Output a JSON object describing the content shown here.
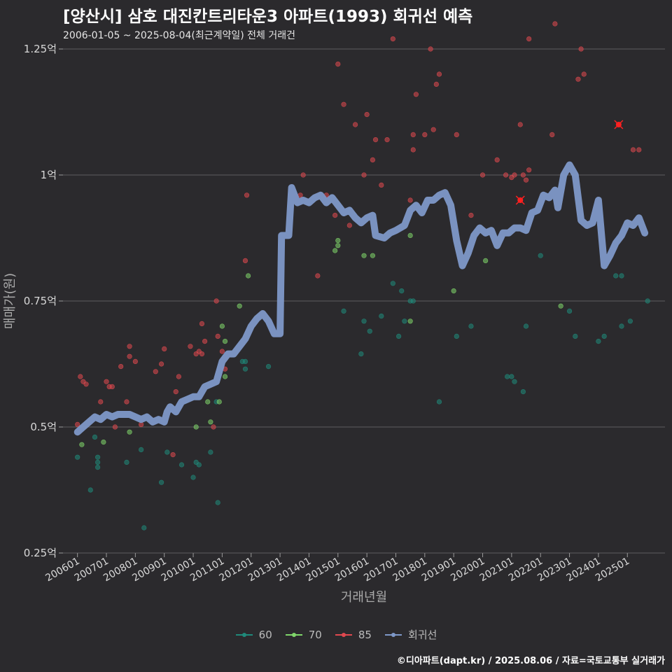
{
  "chart_data": {
    "type": "scatter",
    "title": "[양산시] 삼호 대진칸트리타운3 아파트(1993) 회귀선 예측",
    "subtitle": "2006-01-05 ~ 2025-08-04(최근계약일) 전체 거래건",
    "xlabel": "거래년월",
    "ylabel": "매매가(원)",
    "ylim": [
      0.25,
      1.25
    ],
    "y_ticks": [
      0.25,
      0.5,
      0.75,
      1.0,
      1.25
    ],
    "y_tick_labels": [
      "0.25억",
      "0.5억",
      "0.75억",
      "1억",
      "1.25억"
    ],
    "x_range": [
      2005.5,
      2026.3
    ],
    "x_ticks": [
      2006,
      2007,
      2008,
      2009,
      2010,
      2011,
      2012,
      2013,
      2014,
      2015,
      2016,
      2017,
      2018,
      2019,
      2020,
      2021,
      2022,
      2023,
      2024,
      2025
    ],
    "x_tick_labels": [
      "200601",
      "200701",
      "200801",
      "200901",
      "201001",
      "201101",
      "201201",
      "201301",
      "201401",
      "201501",
      "201601",
      "201701",
      "201801",
      "201901",
      "202001",
      "202101",
      "202201",
      "202301",
      "202401",
      "202501"
    ],
    "legend": [
      {
        "name": "60",
        "color": "#1f8a7a"
      },
      {
        "name": "70",
        "color": "#7fd66a"
      },
      {
        "name": "85",
        "color": "#e0484f"
      },
      {
        "name": "회귀선",
        "color": "#7e98c8"
      }
    ],
    "series": [
      {
        "name": "60",
        "color": "#1f8a7a",
        "points": [
          [
            2006.0,
            0.44
          ],
          [
            2006.45,
            0.375
          ],
          [
            2006.6,
            0.48
          ],
          [
            2006.7,
            0.44
          ],
          [
            2006.7,
            0.43
          ],
          [
            2006.7,
            0.42
          ],
          [
            2007.7,
            0.43
          ],
          [
            2008.2,
            0.455
          ],
          [
            2008.3,
            0.3
          ],
          [
            2008.9,
            0.39
          ],
          [
            2009.1,
            0.45
          ],
          [
            2009.6,
            0.425
          ],
          [
            2010.0,
            0.4
          ],
          [
            2010.1,
            0.43
          ],
          [
            2010.2,
            0.425
          ],
          [
            2010.6,
            0.45
          ],
          [
            2010.8,
            0.55
          ],
          [
            2010.85,
            0.35
          ],
          [
            2011.7,
            0.63
          ],
          [
            2011.8,
            0.615
          ],
          [
            2011.8,
            0.63
          ],
          [
            2012.6,
            0.62
          ],
          [
            2015.2,
            0.73
          ],
          [
            2015.8,
            0.645
          ],
          [
            2015.9,
            0.71
          ],
          [
            2016.1,
            0.69
          ],
          [
            2016.5,
            0.72
          ],
          [
            2016.9,
            0.785
          ],
          [
            2017.1,
            0.68
          ],
          [
            2017.2,
            0.77
          ],
          [
            2017.5,
            0.75
          ],
          [
            2017.6,
            0.75
          ],
          [
            2017.3,
            0.71
          ],
          [
            2018.5,
            0.55
          ],
          [
            2019.1,
            0.68
          ],
          [
            2019.6,
            0.7
          ],
          [
            2020.85,
            0.6
          ],
          [
            2021.0,
            0.6
          ],
          [
            2021.1,
            0.59
          ],
          [
            2021.4,
            0.57
          ],
          [
            2021.5,
            0.7
          ],
          [
            2022.0,
            0.84
          ],
          [
            2023.0,
            0.73
          ],
          [
            2023.2,
            0.68
          ],
          [
            2024.0,
            0.67
          ],
          [
            2024.2,
            0.68
          ],
          [
            2024.6,
            0.8
          ],
          [
            2024.8,
            0.7
          ],
          [
            2024.8,
            0.8
          ],
          [
            2025.1,
            0.71
          ],
          [
            2025.7,
            0.75
          ]
        ]
      },
      {
        "name": "70",
        "color": "#7fd66a",
        "points": [
          [
            2006.15,
            0.465
          ],
          [
            2006.9,
            0.47
          ],
          [
            2007.8,
            0.49
          ],
          [
            2010.5,
            0.55
          ],
          [
            2010.6,
            0.51
          ],
          [
            2010.9,
            0.55
          ],
          [
            2011.0,
            0.7
          ],
          [
            2011.1,
            0.67
          ],
          [
            2011.1,
            0.6
          ],
          [
            2011.6,
            0.74
          ],
          [
            2011.9,
            0.8
          ],
          [
            2014.9,
            0.85
          ],
          [
            2015.0,
            0.87
          ],
          [
            2015.0,
            0.86
          ],
          [
            2015.9,
            0.84
          ],
          [
            2016.2,
            0.84
          ],
          [
            2017.5,
            0.88
          ],
          [
            2017.5,
            0.71
          ],
          [
            2019.0,
            0.77
          ],
          [
            2020.1,
            0.83
          ],
          [
            2022.7,
            0.74
          ],
          [
            2010.1,
            0.5
          ]
        ]
      },
      {
        "name": "85",
        "color": "#e0484f",
        "points": [
          [
            2006.0,
            0.505
          ],
          [
            2006.1,
            0.6
          ],
          [
            2006.2,
            0.59
          ],
          [
            2006.3,
            0.585
          ],
          [
            2006.8,
            0.55
          ],
          [
            2007.0,
            0.59
          ],
          [
            2007.1,
            0.58
          ],
          [
            2007.2,
            0.58
          ],
          [
            2007.3,
            0.5
          ],
          [
            2007.5,
            0.62
          ],
          [
            2007.7,
            0.55
          ],
          [
            2007.8,
            0.64
          ],
          [
            2007.8,
            0.66
          ],
          [
            2008.0,
            0.63
          ],
          [
            2008.2,
            0.505
          ],
          [
            2008.7,
            0.61
          ],
          [
            2008.9,
            0.625
          ],
          [
            2009.0,
            0.655
          ],
          [
            2009.3,
            0.445
          ],
          [
            2009.4,
            0.57
          ],
          [
            2009.5,
            0.6
          ],
          [
            2009.9,
            0.66
          ],
          [
            2010.1,
            0.645
          ],
          [
            2010.2,
            0.65
          ],
          [
            2010.3,
            0.645
          ],
          [
            2010.3,
            0.705
          ],
          [
            2010.4,
            0.67
          ],
          [
            2010.7,
            0.5
          ],
          [
            2010.8,
            0.75
          ],
          [
            2010.85,
            0.68
          ],
          [
            2011.0,
            0.65
          ],
          [
            2011.1,
            0.615
          ],
          [
            2011.8,
            0.83
          ],
          [
            2011.85,
            0.96
          ],
          [
            2013.7,
            0.96
          ],
          [
            2013.8,
            1.0
          ],
          [
            2014.3,
            0.8
          ],
          [
            2014.6,
            0.96
          ],
          [
            2014.9,
            0.92
          ],
          [
            2015.0,
            1.22
          ],
          [
            2015.2,
            1.14
          ],
          [
            2015.4,
            0.9
          ],
          [
            2015.6,
            1.1
          ],
          [
            2015.9,
            1.0
          ],
          [
            2016.0,
            1.12
          ],
          [
            2016.2,
            1.03
          ],
          [
            2016.3,
            1.07
          ],
          [
            2016.5,
            0.98
          ],
          [
            2016.7,
            1.07
          ],
          [
            2016.9,
            1.27
          ],
          [
            2017.5,
            0.95
          ],
          [
            2017.6,
            1.05
          ],
          [
            2017.6,
            1.08
          ],
          [
            2017.7,
            1.16
          ],
          [
            2018.0,
            1.08
          ],
          [
            2018.2,
            1.25
          ],
          [
            2018.3,
            1.09
          ],
          [
            2018.4,
            1.18
          ],
          [
            2018.5,
            1.2
          ],
          [
            2019.1,
            1.08
          ],
          [
            2019.6,
            0.92
          ],
          [
            2020.0,
            1.0
          ],
          [
            2020.5,
            1.03
          ],
          [
            2020.8,
            1.0
          ],
          [
            2021.0,
            0.995
          ],
          [
            2021.1,
            1.0
          ],
          [
            2021.3,
            0.95
          ],
          [
            2021.3,
            1.1
          ],
          [
            2021.4,
            1.0
          ],
          [
            2021.5,
            0.99
          ],
          [
            2021.6,
            1.01
          ],
          [
            2021.6,
            1.27
          ],
          [
            2022.4,
            1.08
          ],
          [
            2022.5,
            1.3
          ],
          [
            2023.3,
            1.19
          ],
          [
            2023.4,
            1.25
          ],
          [
            2023.5,
            1.2
          ],
          [
            2024.7,
            1.1
          ],
          [
            2025.2,
            1.05
          ],
          [
            2025.4,
            1.05
          ]
        ]
      }
    ],
    "highlighted_points": [
      [
        2021.3,
        0.95
      ],
      [
        2024.7,
        1.1
      ]
    ],
    "regression_line": [
      [
        2006.0,
        0.49
      ],
      [
        2006.2,
        0.5
      ],
      [
        2006.4,
        0.51
      ],
      [
        2006.6,
        0.52
      ],
      [
        2006.8,
        0.515
      ],
      [
        2007.0,
        0.525
      ],
      [
        2007.2,
        0.52
      ],
      [
        2007.4,
        0.525
      ],
      [
        2007.6,
        0.525
      ],
      [
        2007.8,
        0.525
      ],
      [
        2008.0,
        0.52
      ],
      [
        2008.2,
        0.515
      ],
      [
        2008.4,
        0.52
      ],
      [
        2008.6,
        0.51
      ],
      [
        2008.8,
        0.515
      ],
      [
        2009.0,
        0.51
      ],
      [
        2009.1,
        0.53
      ],
      [
        2009.2,
        0.54
      ],
      [
        2009.4,
        0.53
      ],
      [
        2009.6,
        0.55
      ],
      [
        2009.8,
        0.555
      ],
      [
        2010.0,
        0.56
      ],
      [
        2010.2,
        0.56
      ],
      [
        2010.4,
        0.58
      ],
      [
        2010.6,
        0.585
      ],
      [
        2010.8,
        0.59
      ],
      [
        2011.0,
        0.63
      ],
      [
        2011.2,
        0.645
      ],
      [
        2011.4,
        0.645
      ],
      [
        2011.6,
        0.66
      ],
      [
        2011.8,
        0.675
      ],
      [
        2012.0,
        0.7
      ],
      [
        2012.2,
        0.715
      ],
      [
        2012.4,
        0.725
      ],
      [
        2012.6,
        0.71
      ],
      [
        2012.8,
        0.685
      ],
      [
        2013.0,
        0.685
      ],
      [
        2013.05,
        0.88
      ],
      [
        2013.3,
        0.88
      ],
      [
        2013.4,
        0.975
      ],
      [
        2013.6,
        0.945
      ],
      [
        2013.8,
        0.95
      ],
      [
        2014.0,
        0.945
      ],
      [
        2014.2,
        0.955
      ],
      [
        2014.4,
        0.96
      ],
      [
        2014.6,
        0.945
      ],
      [
        2014.8,
        0.955
      ],
      [
        2015.0,
        0.94
      ],
      [
        2015.2,
        0.925
      ],
      [
        2015.4,
        0.93
      ],
      [
        2015.6,
        0.915
      ],
      [
        2015.8,
        0.905
      ],
      [
        2016.0,
        0.915
      ],
      [
        2016.2,
        0.92
      ],
      [
        2016.3,
        0.88
      ],
      [
        2016.6,
        0.875
      ],
      [
        2016.8,
        0.885
      ],
      [
        2017.0,
        0.89
      ],
      [
        2017.3,
        0.9
      ],
      [
        2017.5,
        0.93
      ],
      [
        2017.7,
        0.94
      ],
      [
        2017.9,
        0.925
      ],
      [
        2018.1,
        0.95
      ],
      [
        2018.3,
        0.95
      ],
      [
        2018.5,
        0.96
      ],
      [
        2018.7,
        0.965
      ],
      [
        2018.9,
        0.94
      ],
      [
        2019.1,
        0.87
      ],
      [
        2019.3,
        0.82
      ],
      [
        2019.5,
        0.845
      ],
      [
        2019.7,
        0.88
      ],
      [
        2019.9,
        0.895
      ],
      [
        2020.1,
        0.885
      ],
      [
        2020.3,
        0.89
      ],
      [
        2020.5,
        0.86
      ],
      [
        2020.7,
        0.885
      ],
      [
        2020.9,
        0.885
      ],
      [
        2021.1,
        0.895
      ],
      [
        2021.3,
        0.895
      ],
      [
        2021.5,
        0.89
      ],
      [
        2021.7,
        0.925
      ],
      [
        2021.9,
        0.93
      ],
      [
        2022.1,
        0.96
      ],
      [
        2022.3,
        0.955
      ],
      [
        2022.5,
        0.97
      ],
      [
        2022.6,
        0.935
      ],
      [
        2022.8,
        1.0
      ],
      [
        2023.0,
        1.02
      ],
      [
        2023.2,
        1.0
      ],
      [
        2023.4,
        0.91
      ],
      [
        2023.6,
        0.9
      ],
      [
        2023.8,
        0.905
      ],
      [
        2024.0,
        0.95
      ],
      [
        2024.2,
        0.82
      ],
      [
        2024.4,
        0.84
      ],
      [
        2024.6,
        0.865
      ],
      [
        2024.8,
        0.88
      ],
      [
        2025.0,
        0.905
      ],
      [
        2025.2,
        0.9
      ],
      [
        2025.4,
        0.915
      ],
      [
        2025.6,
        0.885
      ]
    ]
  },
  "credit": "©디아파트(dapt.kr) / 2025.08.06 / 자료=국토교통부 실거래가"
}
